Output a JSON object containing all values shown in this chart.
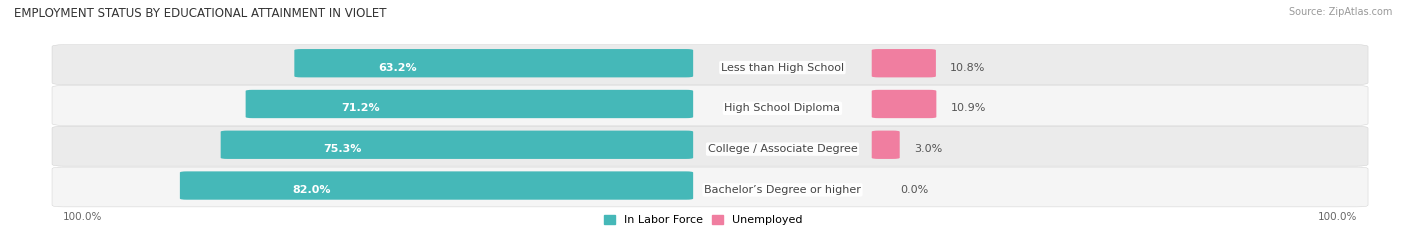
{
  "title": "EMPLOYMENT STATUS BY EDUCATIONAL ATTAINMENT IN VIOLET",
  "source": "Source: ZipAtlas.com",
  "categories": [
    "Less than High School",
    "High School Diploma",
    "College / Associate Degree",
    "Bachelor’s Degree or higher"
  ],
  "in_labor_force": [
    63.2,
    71.2,
    75.3,
    82.0
  ],
  "unemployed": [
    10.8,
    10.9,
    3.0,
    0.0
  ],
  "color_labor": "#45B8B8",
  "color_unemployed": "#F07EA0",
  "color_row_bg": "#EBEBEB",
  "color_row_bg2": "#F5F5F5",
  "axis_label_left": "100.0%",
  "axis_label_right": "100.0%",
  "legend_labor": "In Labor Force",
  "legend_unemployed": "Unemployed",
  "title_fontsize": 8.5,
  "source_fontsize": 7.0,
  "bar_label_fontsize": 8.0,
  "cat_label_fontsize": 8.0,
  "val_label_fontsize": 8.0,
  "background_color": "#FFFFFF"
}
